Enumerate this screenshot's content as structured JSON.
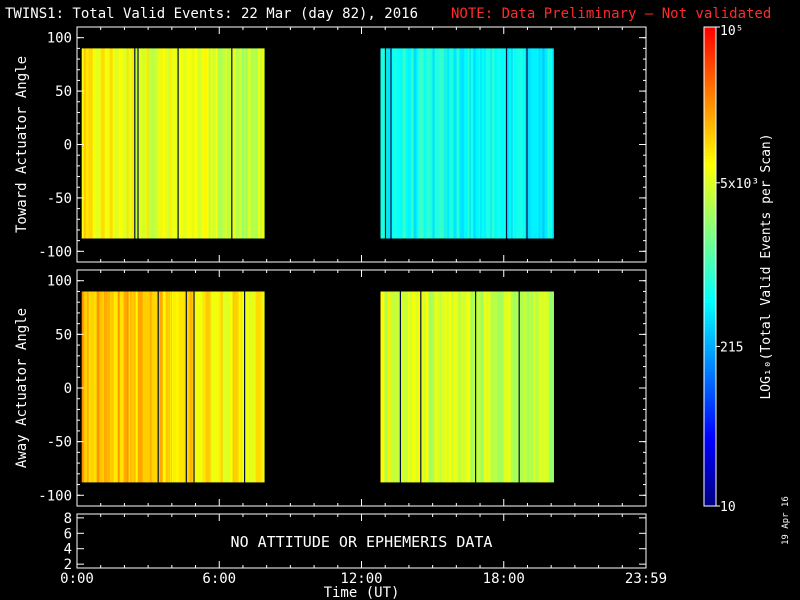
{
  "header": {
    "title": "TWINS1: Total Valid Events: 22 Mar (day  82), 2016",
    "note": "NOTE: Data Preliminary — Not validated"
  },
  "date_stamp": "19 Apr 16",
  "colors": {
    "background": "#000000",
    "axes": "#ffffff",
    "note": "#ff2b2b"
  },
  "colorbar": {
    "label": "LOG₁₀(Total Valid  Events per Scan)",
    "scale": "log",
    "range": [
      10,
      100000
    ],
    "tick_labels": [
      "10",
      "215",
      "5x10³",
      "10⁵"
    ],
    "colormap": [
      "#000080",
      "#0000ff",
      "#0080ff",
      "#00ffff",
      "#80ff80",
      "#ffff00",
      "#ff8000",
      "#ff0000"
    ]
  },
  "chart_data": [
    {
      "type": "heatmap",
      "panel": "toward",
      "ylabel": "Toward Actuator Angle",
      "ylim": [
        -110,
        110
      ],
      "yticks": [
        "100",
        "50",
        "0",
        "-50",
        "-100"
      ],
      "xlim": [
        0,
        24
      ],
      "xticks": [
        "0:00",
        "6:00",
        "12:00",
        "18:00",
        "23:59"
      ],
      "angle_range": [
        -88,
        90
      ],
      "data_intervals": [
        {
          "start_hr": 0.2,
          "end_hr": 7.9,
          "log_counts": 3.9
        },
        {
          "start_hr": 12.8,
          "end_hr": 20.1,
          "log_counts": 2.8
        }
      ]
    },
    {
      "type": "heatmap",
      "panel": "away",
      "ylabel": "Away Actuator Angle",
      "ylim": [
        -110,
        110
      ],
      "yticks": [
        "100",
        "50",
        "0",
        "-50",
        "-100"
      ],
      "xlim": [
        0,
        24
      ],
      "xticks": [
        "0:00",
        "6:00",
        "12:00",
        "18:00",
        "23:59"
      ],
      "angle_range": [
        -88,
        90
      ],
      "data_intervals": [
        {
          "start_hr": 0.2,
          "end_hr": 7.9,
          "log_counts": 4.2
        },
        {
          "start_hr": 12.8,
          "end_hr": 20.1,
          "log_counts": 3.7
        }
      ]
    },
    {
      "type": "line",
      "panel": "ephemeris",
      "yticks": [
        "8",
        "6",
        "4",
        "2"
      ],
      "ylim": [
        1.5,
        8.5
      ],
      "xlim": [
        0,
        24
      ],
      "xticks": [
        "0:00",
        "6:00",
        "12:00",
        "18:00",
        "23:59"
      ],
      "xlabel": "Time (UT)",
      "message": "NO ATTITUDE OR EPHEMERIS DATA",
      "series": []
    }
  ]
}
